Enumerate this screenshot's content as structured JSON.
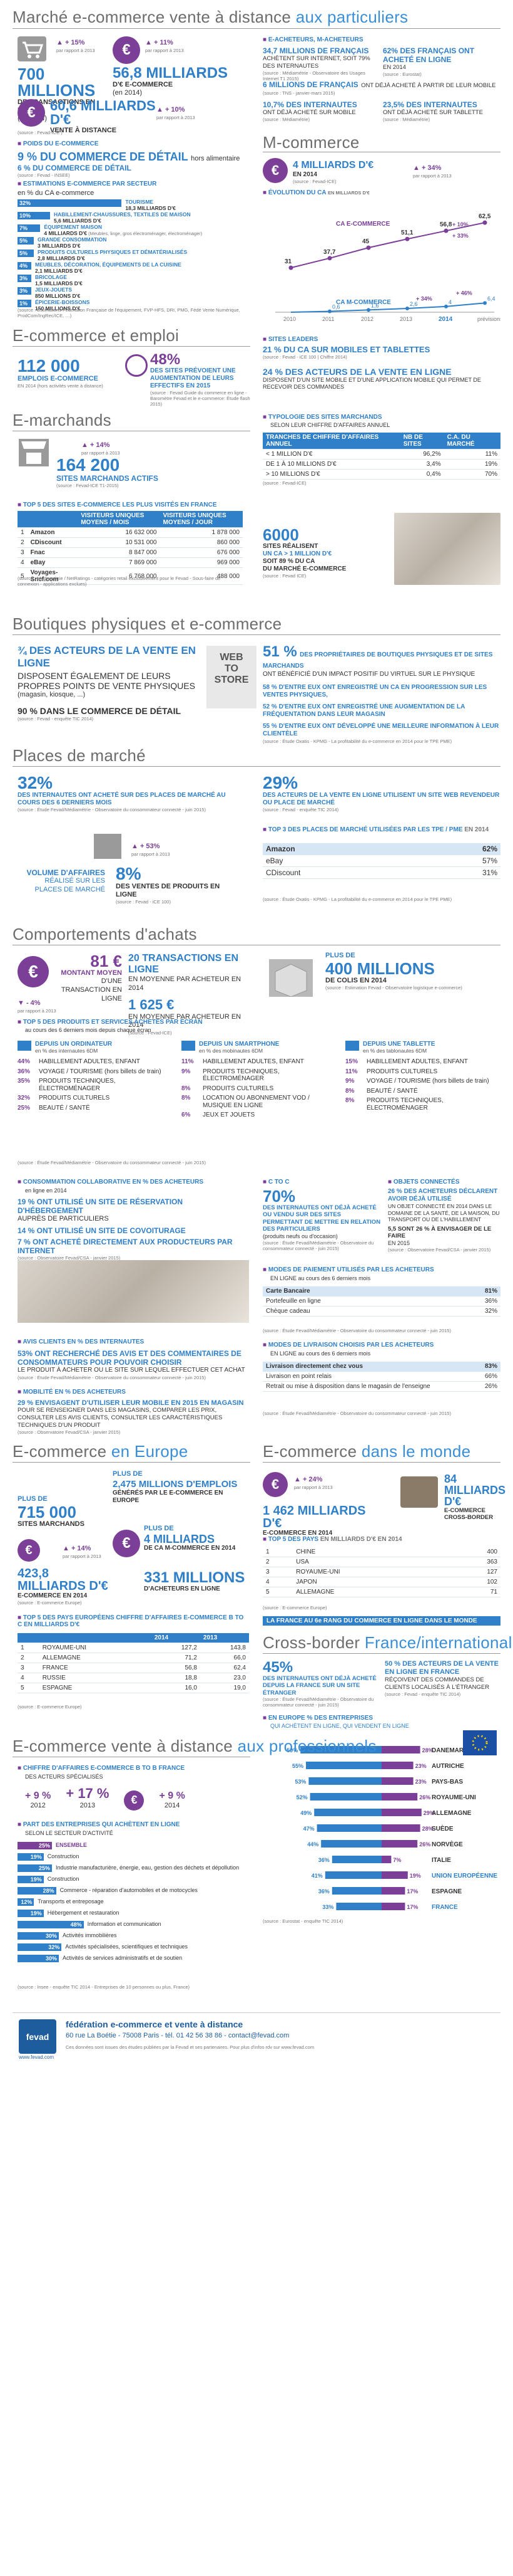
{
  "s1": {
    "title": "Marché e-commerce vente à distance ",
    "title_hl": "aux particuliers",
    "stat1_pct": "+ 15%",
    "stat1_sub": "par rapport à 2013",
    "stat1_val": "700 MILLIONS",
    "stat1_lbl": "DE TRANSACTIONS EN LIGNE",
    "stat1_year": "(en 2014)",
    "stat2_pct": "+ 11%",
    "stat2_sub": "par rapport à 2013",
    "stat2_val": "56,8 MILLIARDS",
    "stat2_lbl": "D'€ E-COMMERCE",
    "stat2_year": "(en 2014)",
    "stat3_val": "60,6 MILLIARDS D'€",
    "stat3_lbl": "VENTE À DISTANCE",
    "stat3_pct": "+ 10%",
    "stat3_sub": "par rapport à 2013",
    "src1": "(source : Fevad-ICE )",
    "poids_tag": "POIDS DU E-COMMERCE",
    "poids_val": "9 % DU COMMERCE DE DÉTAIL",
    "poids_sub1": "hors alimentaire",
    "poids_val2": "6 % DU COMMERCE DE DÉTAIL",
    "src2": "(source : Fevad - INSEE)",
    "estim_tag": "ESTIMATIONS E-COMMERCE PAR SECTEUR",
    "estim_sub": "en % du CA e-commerce",
    "sectors": [
      {
        "pct": "32%",
        "name": "TOURISME",
        "val": "18,3 MILLIARDS D'€"
      },
      {
        "pct": "10%",
        "name": "HABILLEMENT-CHAUSSURES, TEXTILES DE MAISON",
        "val": "5,6 MILLIARDS D'€"
      },
      {
        "pct": "7%",
        "name": "ÉQUIPEMENT MAISON",
        "val": "4 MILLIARDS D'€",
        "note": "(Meubles, linge, gros électroménager, électroménager)"
      },
      {
        "pct": "5%",
        "name": "GRANDE CONSOMMATION",
        "val": "3 MILLIARDS D'€"
      },
      {
        "pct": "5%",
        "name": "PRODUITS CULTURELS PHYSIQUES ET DÉMATÉRIALISÉS",
        "val": "2,8 MILLIARDS D'€"
      },
      {
        "pct": "4%",
        "name": "MEUBLES, DÉCORATION, ÉQUIPEMENTS DE LA CUISINE",
        "val": "2,1 MILLIARDS D'€"
      },
      {
        "pct": "3%",
        "name": "BRICOLAGE",
        "val": "1,5 MILLIARDS D'€"
      },
      {
        "pct": "3%",
        "name": "JEUX-JOUETS",
        "val": "850 MILLIONS D'€"
      },
      {
        "pct": "1%",
        "name": "ÉPICERIE-BOISSONS",
        "val": "150 MILLIONS D'€"
      }
    ],
    "sector_pcts": [
      32,
      10,
      7,
      5,
      5,
      4,
      3,
      3,
      1
    ],
    "src3": "(source : Estimations Fédération Française de l'équipement, FVP-HFS, DRI, PMG, Fédé Vente Numérique, ProdCom/IngRec/ICE, …)",
    "acheteurs_tag": "E-ACHETEURS, M-ACHETEURS",
    "ach1_val": "34,7 MILLIONS DE FRANÇAIS",
    "ach1_lbl": "ACHÈTENT SUR INTERNET, SOIT 79% DES INTERNAUTES",
    "ach1_src": "(source : Médiamétrie - Observatoire des Usages Internet T1 2015)",
    "ach2_val": "62% DES FRANÇAIS ONT ACHETÉ EN LIGNE",
    "ach2_lbl": "EN 2014",
    "ach2_src": "(source : Eurostat)",
    "ach3_val": "6 MILLIONS DE FRANÇAIS",
    "ach3_lbl": "ONT DÉJÀ ACHETÉ À PARTIR DE LEUR MOBILE",
    "ach3_src": "(source : TNS - janvier-mars 2015)",
    "ach4_val": "10,7% DES INTERNAUTES",
    "ach4_lbl": "ONT DÉJÀ ACHETÉ SUR MOBILE",
    "ach4_src": "(source : Médiamétrie)",
    "ach5_val": "23,5% DES INTERNAUTES",
    "ach5_lbl": "ONT DÉJÀ ACHETÉ SUR TABLETTE",
    "ach5_src": "(source : Médiamétrie)"
  },
  "mcom": {
    "title": "M-commerce",
    "val": "4 MILLIARDS D'€",
    "lbl": "EN 2014",
    "pct": "+ 34%",
    "sub": "par rapport à 2013",
    "src": "(source : Fevad-ICE)",
    "evol_tag": "ÉVOLUTION DU CA",
    "evol_sub": "en milliards d'€",
    "chart_title": "CA E-COMMERCE",
    "chart_title2": "CA M-COMMERCE",
    "years": [
      "2010",
      "2011",
      "2012",
      "2013",
      "2014",
      "prévisions 2015"
    ],
    "ecom": [
      31,
      37.7,
      45,
      51.1,
      56.8,
      62.5
    ],
    "mcom": [
      0,
      0.6,
      1.6,
      2.6,
      4,
      6.4
    ],
    "ecom_lbl": [
      "31",
      "37,7",
      "45",
      "51,1",
      "56,8",
      "62,5"
    ],
    "mcom_lbl": [
      "",
      "0,6",
      "1,6",
      "2,6",
      "4",
      "6,4"
    ],
    "ann1": "+ 10%",
    "ann2": "+ 33%",
    "ann3": "+ 34%",
    "ann4": "+ 46%",
    "leaders_tag": "SITES LEADERS",
    "leaders_val": "21 % DU CA SUR MOBILES ET TABLETTES",
    "leaders_src": "(source : Fevad - iCE 100 | Chiffre 2014)",
    "acteurs_val": "24 % DES ACTEURS DE LA VENTE EN LIGNE",
    "acteurs_lbl": "DISPOSENT D'UN SITE MOBILE ET D'UNE APPLICATION MOBILE QUI PERMET DE RECEVOIR DES COMMANDES"
  },
  "emploi": {
    "title": "E-commerce et emploi",
    "val": "112 000",
    "lbl": "EMPLOIS E-COMMERCE",
    "sub": "EN 2014 (hors activités vente à distance)",
    "pct": "48%",
    "pct_lbl": "DES SITES PRÉVOIENT UNE AUGMENTATION DE LEURS EFFECTIFS EN 2015",
    "src": "(source : Fevad Guide du commerce en ligne - Baromètre Fevad et le e-commerce: Étude flash 2015)"
  },
  "emarch": {
    "title": "E-marchands",
    "pct": "+ 14%",
    "sub": "par rapport à 2013",
    "val": "164 200",
    "lbl": "SITES MARCHANDS ACTIFS",
    "src": "(source : Fevad-ICE T1-2015)",
    "typo_tag": "TYPOLOGIE DES SITES MARCHANDS",
    "typo_sub": "SELON LEUR CHIFFRE D'AFFAIRES ANNUEL",
    "typo_head": [
      "TRANCHES DE CHIFFRE D'AFFAIRES ANNUEL",
      "NB DE SITES",
      "C.A. DU MARCHÉ"
    ],
    "typo_rows": [
      [
        "< 1 MILLION D'€",
        "96,2%",
        "11%"
      ],
      [
        "DE 1 À 10 MILLIONS D'€",
        "3,4%",
        "19%"
      ],
      [
        "> 10 MILLIONS D'€",
        "0,4%",
        "70%"
      ]
    ],
    "typo_src": "(source : Fevad-ICE)",
    "top5_tag": "TOP 5 DES SITES E-COMMERCE LES PLUS VISITÉS EN FRANCE",
    "top5_head": [
      "",
      "VISITEURS UNIQUES MOYENS / MOIS",
      "VISITEURS UNIQUES MOYENS / JOUR"
    ],
    "top5": [
      [
        "1",
        "Amazon",
        "16 632 000",
        "1 878 000"
      ],
      [
        "2",
        "CDiscount",
        "10 531 000",
        "860 000"
      ],
      [
        "3",
        "Fnac",
        "8 847 000",
        "676 000"
      ],
      [
        "4",
        "eBay",
        "7 869 000",
        "969 000"
      ],
      [
        "5",
        "Voyages-Sncf.com",
        "6 768 000",
        "488 000"
      ]
    ],
    "top5_src": "(source : Médiamétrie / NetRatings - catégories retail exclusivement pour le Fevad - Sous-faire de connexion - applications exclues)",
    "sites_val": "6000",
    "sites_lbl1": "SITES RÉALISENT",
    "sites_lbl2": "UN CA > 1 MILLION D'€",
    "sites_lbl3": "SOIT 89 % DU CA",
    "sites_lbl4": "DU MARCHÉ E-COMMERCE",
    "sites_src": "(source : Fevad ICE)"
  },
  "bphy": {
    "title": "Boutiques physiques et e-commerce",
    "v1": "¾ DES ACTEURS DE LA VENTE EN LIGNE",
    "v1b": "DISPOSENT ÉGALEMENT DE LEURS PROPRES POINTS DE VENTE PHYSIQUES",
    "v1c": "(magasin, kiosque, ...)",
    "v2": "90 % DANS LE COMMERCE DE DÉTAIL",
    "v2_src": "(source : Fevad - enquête TIC 2014)",
    "web": "WEB",
    "to": "TO",
    "store": "STORE",
    "p51": "51 %",
    "p51_lbl": "DES PROPRIÉTAIRES DE BOUTIQUES PHYSIQUES ET DE SITES MARCHANDS",
    "p51_b": "ONT BÉNÉFICIÉ D'UN IMPACT POSITIF DU VIRTUEL SUR LE PHYSIQUE",
    "p58": "58 % D'ENTRE EUX ONT ENREGISTRÉ UN CA EN PROGRESSION SUR LES VENTES PHYSIQUES,",
    "p52": "52 % D'ENTRE EUX ONT ENREGISTRÉ UNE AUGMENTATION DE LA FRÉQUENTATION DANS LEUR MAGASIN",
    "p55": "55 % D'ENTRE EUX ONT DÉVELOPPÉ UNE MEILLEURE INFORMATION À LEUR CLIENTÈLE",
    "src": "(source : Étude Oxatis - KPMG - La profitabilité du e-commerce en 2014 pour le TPE PME)"
  },
  "place": {
    "title": "Places de marché",
    "p32": "32%",
    "p32_lbl": "DES INTERNAUTES ONT ACHETÉ SUR DES PLACES DE MARCHÉ AU COURS DES 6 DERNIERS MOIS",
    "p32_src": "(source : Étude Fevad/Médiamétrie - Observatoire du consommateur connecté - juin 2015)",
    "p29": "29%",
    "p29_lbl": "DES ACTEURS DE LA VENTE EN LIGNE UTILISENT UN SITE WEB REVENDEUR OU PLACE DE MARCHÉ",
    "p29_src": "(source : Fevad - enquête TIC 2014)",
    "pct": "+ 53%",
    "sub": "par rapport à 2013",
    "vol1": "VOLUME D'AFFAIRES",
    "vol2": "RÉALISÉ SUR LES PLACES DE MARCHÉ",
    "p8": "8%",
    "p8_lbl": "DES VENTES DE PRODUITS EN LIGNE",
    "p8_src": "(source : Fevad - iCE 100)",
    "top3_tag": "TOP 3 DES PLACES DE MARCHÉ UTILISÉES PAR LES TPE / PME",
    "top3_sub": "EN 2014",
    "top3": [
      [
        "Amazon",
        "62%"
      ],
      [
        "eBay",
        "57%"
      ],
      [
        "CDiscount",
        "31%"
      ]
    ],
    "top3_src": "(source : Étude Oxatis - KPMG - La profitabilité du e-commerce en 2014 pour le TPE PME)"
  },
  "achats": {
    "title": "Comportements d'achats",
    "m81": "81 €",
    "m81_lbl": "MONTANT MOYEN",
    "m81_sub": "D'UNE TRANSACTION EN LIGNE",
    "m81_pct": "- 4%",
    "m81_psub": "par rapport à 2013",
    "t20": "20 TRANSACTIONS EN LIGNE",
    "t20_lbl": "EN MOYENNE PAR ACHETEUR EN 2014",
    "t1625": "1 625 €",
    "t1625_lbl": "EN MOYENNE PAR ACHETEUR EN 2014",
    "plus": "PLUS DE",
    "colis": "400 MILLIONS",
    "colis_lbl": "DE COLIS EN 2014",
    "colis_src": "(source : Estimation Fevad - Observatoire logistique e-commerce)",
    "src": "(source : Fevad-ICE)",
    "top5_tag": "TOP 5 DES PRODUITS ET SERVICES ACHETÉS PAR ÉCRAN",
    "top5_sub": "au cours des 6 derniers mois depuis chaque écran",
    "cols": [
      {
        "h": "DEPUIS UN ORDINATEUR",
        "s": "en % des internautes 6DM",
        "items": [
          [
            "44%",
            "HABILLEMENT ADULTES, ENFANT"
          ],
          [
            "36%",
            "VOYAGE / TOURISME (hors billets de train)"
          ],
          [
            "35%",
            "PRODUITS TECHNIQUES, ÉLECTROMÉNAGER"
          ],
          [
            "32%",
            "PRODUITS CULTURELS"
          ],
          [
            "25%",
            "BEAUTÉ / SANTÉ"
          ]
        ]
      },
      {
        "h": "DEPUIS UN SMARTPHONE",
        "s": "en % des mobinautes 6DM",
        "items": [
          [
            "11%",
            "HABILLEMENT ADULTES, ENFANT"
          ],
          [
            "9%",
            "PRODUITS TECHNIQUES, ÉLECTROMÉNAGER"
          ],
          [
            "8%",
            "PRODUITS CULTURELS"
          ],
          [
            "8%",
            "LOCATION OU ABONNEMENT VOD / MUSIQUE EN LIGNE"
          ],
          [
            "6%",
            "JEUX ET JOUETS"
          ]
        ]
      },
      {
        "h": "DEPUIS UNE TABLETTE",
        "s": "en % des tablonautes 6DM",
        "items": [
          [
            "15%",
            "HABILLEMENT ADULTES, ENFANT"
          ],
          [
            "11%",
            "PRODUITS CULTURELS"
          ],
          [
            "9%",
            "VOYAGE / TOURISME (hors billets de train)"
          ],
          [
            "8%",
            "BEAUTÉ / SANTÉ"
          ],
          [
            "8%",
            "PRODUITS TECHNIQUES, ÉLECTROMÉNAGER"
          ]
        ]
      }
    ],
    "top5_src": "(source : Étude Fevad/Médiamétrie - Observatoire du consommateur connecté - juin 2015)",
    "collab_tag": "CONSOMMATION COLLABORATIVE en % des acheteurs",
    "collab_sub": "en ligne en 2014",
    "c19": "19 % ONT UTILISÉ UN SITE DE RÉSERVATION D'HÉBERGEMENT",
    "c19b": "AUPRÈS DE PARTICULIERS",
    "c14": "14 % ONT UTILISÉ UN SITE DE COVOITURAGE",
    "c7": "7 % ONT ACHETÉ DIRECTEMENT AUX PRODUCTEURS PAR INTERNET",
    "collab_src": "(source : Observatoire Fevad/CSA - janvier 2015)",
    "c2c_tag": "C to C",
    "c70": "70%",
    "c70_lbl": "DES INTERNAUTES ONT DÉJÀ ACHETÉ OU VENDU SUR DES SITES PERMETTANT DE METTRE EN RELATION DES PARTICULIERS",
    "c70_b": "(produits neufs ou d'occasion)",
    "c2c_src": "(source : Étude Fevad/Médiamétrie - Observatoire du consommateur connecté - juin 2015)",
    "obj_tag": "OBJETS CONNECTÉS",
    "o26": "26 % DES ACHETEURS DÉCLARENT AVOIR DÉJÀ UTILISÉ",
    "o26b": "UN OBJET CONNECTÉ EN 2014 DANS LE DOMAINE DE LA SANTÉ, DE LA MAISON, DU TRANSPORT OU DE L'HABILLEMENT",
    "o5": "5,5 SONT 26 % À ENVISAGER DE LE FAIRE",
    "o5b": "EN 2015",
    "obj_src": "(source : Observatoire Fevad/CSA - janvier 2015)",
    "pay_tag": "MODES DE PAIEMENT UTILISÉS PAR LES ACHETEURS",
    "pay_sub": "EN LIGNE au cours des 6 derniers mois",
    "pay": [
      [
        "Carte Bancaire",
        "81%"
      ],
      [
        "Portefeuille en ligne",
        "36%"
      ],
      [
        "Chèque cadeau",
        "32%"
      ]
    ],
    "pay_src": "(source : Étude Fevad/Médiamétrie - Observatoire du consommateur connecté - juin 2015)",
    "avis_tag": "AVIS CLIENTS en % des internautes",
    "a53": "53% ONT RECHERCHÉ DES AVIS ET DES COMMENTAIRES DE CONSOMMATEURS POUR POUVOIR CHOISIR",
    "a53b": "LE PRODUIT À ACHETER OU LE SITE SUR LEQUEL EFFECTUER CET ACHAT",
    "avis_src": "(source : Étude Fevad/Médiamétrie - Observatoire du consommateur connecté - juin 2015)",
    "mob_tag": "MOBILITÉ en % des acheteurs",
    "m29": "29 % ENVISAGENT D'UTILISER LEUR MOBILE EN 2015 EN MAGASIN",
    "m29b": "POUR SE RENSEIGNER DANS LES MAGASINS, COMPARER LES PRIX, CONSULTER LES AVIS CLIENTS, CONSULTER LES CARACTÉRISTIQUES TECHNIQUES D'UN PRODUIT",
    "mob_src": "(source : Observatoire Fevad/CSA - janvier 2015)",
    "livr_tag": "MODES DE LIVRAISON CHOISIS PAR LES ACHETEURS",
    "livr_sub": "EN LIGNE au cours des 6 derniers mois",
    "livr": [
      [
        "Livraison directement chez vous",
        "83%"
      ],
      [
        "Livraison en point relais",
        "66%"
      ],
      [
        "Retrait ou mise à disposition dans le magasin de l'enseigne",
        "26%"
      ]
    ],
    "livr_src": "(source : Étude Fevad/Médiamétrie - Observatoire du consommateur connecté - juin 2015)"
  },
  "europe": {
    "title": "E-commerce ",
    "title_hl": "en Europe",
    "plus1": "PLUS DE",
    "emp_val": "2,475 MILLIONS D'EMPLOIS",
    "emp_lbl": "GÉNÉRÉS PAR LE E-COMMERCE EN EUROPE",
    "plus2": "PLUS DE",
    "sites": "715 000",
    "sites_lbl": "SITES MARCHANDS",
    "plus3": "PLUS DE",
    "mcom": "4 MILLIARDS",
    "mcom_lbl": "DE CA M-COMMERCE EN 2014",
    "pct": "+ 14%",
    "psub": "par rapport à 2013",
    "ca": "423,8 MILLIARDS D'€",
    "ca_lbl": "E-COMMERCE EN 2014",
    "ach": "331 MILLIONS",
    "ach_lbl": "D'ACHETEURS EN LIGNE",
    "src": "(source : E-commerce Europe)",
    "top5_tag": "TOP 5 DES PAYS EUROPÉENS CHIFFRE D'AFFAIRES",
    "top5_sub": "E-COMMERCE B to C EN MILLIARDS D'€",
    "top5_head": [
      "",
      "",
      "2014",
      "2013"
    ],
    "top5": [
      [
        "1",
        "ROYAUME-UNI",
        "127,2",
        "143,8"
      ],
      [
        "2",
        "ALLEMAGNE",
        "71,2",
        "66,0"
      ],
      [
        "3",
        "FRANCE",
        "56,8",
        "62,4"
      ],
      [
        "4",
        "RUSSIE",
        "18,8",
        "23,0"
      ],
      [
        "5",
        "ESPAGNE",
        "16,0",
        "19,0"
      ]
    ],
    "top5_src": "(source : E-commerce Europe)"
  },
  "monde": {
    "title": "E-commerce ",
    "title_hl": "dans le monde",
    "pct": "+ 24%",
    "psub": "par rapport à 2013",
    "val": "1 462 MILLIARDS D'€",
    "lbl": "E-COMMERCE EN 2014",
    "v84": "84 MILLIARDS D'€",
    "v84_lbl": "E-COMMERCE CROSS-BORDER",
    "top5_tag": "TOP 5 DES PAYS",
    "top5_sub": "EN MILLIARDS D'€ EN 2014",
    "top5": [
      [
        "1",
        "CHINE",
        "400"
      ],
      [
        "2",
        "USA",
        "363"
      ],
      [
        "3",
        "ROYAUME-UNI",
        "127"
      ],
      [
        "4",
        "JAPON",
        "102"
      ],
      [
        "5",
        "ALLEMAGNE",
        "71"
      ]
    ],
    "top5_src": "(source : E-commerce Europe)",
    "rank": "LA FRANCE AU 6e RANG DU COMMERCE EN LIGNE DANS LE MONDE"
  },
  "cross": {
    "title": "Cross-border ",
    "title_hl": "France/international",
    "p45": "45%",
    "p45_lbl": "DES INTERNAUTES ONT DÉJÀ ACHETÉ DEPUIS LA FRANCE SUR UN SITE ÉTRANGER",
    "p45_src": "(source : Étude Fevad/Médiamétrie - Observatoire du consommateur connecté - juin 2015)",
    "p50": "50 % DES ACTEURS DE LA VENTE EN LIGNE EN FRANCE",
    "p50b": "RÉÇOIVENT DES COMMANDES DE CLIENTS LOCALISÉS À L'ÉTRANGER",
    "p50_src": "(source : Fevad - enquête TIC 2014)",
    "eu_tag": "EN EUROPE % DES ENTREPRISES",
    "eu_sub": "QUI ACHÈTENT EN LIGNE, QUI VENDENT EN LIGNE",
    "eu_countries": [
      "DANEMARK",
      "AUTRICHE",
      "PAYS-BAS",
      "ROYAUME-UNI",
      "ALLEMAGNE",
      "SUÈDE",
      "NORVÈGE",
      "ITALIE",
      "UNION EUROPÉENNE",
      "ESPAGNE",
      "FRANCE"
    ],
    "eu_buy": [
      59,
      55,
      53,
      52,
      49,
      47,
      44,
      36,
      41,
      36,
      33
    ],
    "eu_sell": [
      28,
      23,
      23,
      26,
      29,
      28,
      26,
      7,
      19,
      17,
      17
    ],
    "eu_src": "(source : Eurostat - enquête TIC 2014)"
  },
  "pro": {
    "title": "E-commerce vente à distance ",
    "title_hl": "aux professionnels",
    "ca_tag": "CHIFFRE D'AFFAIRES E-COMMERCE B to B FRANCE",
    "ca_sub": "DES ACTEURS SPÉCIALISÉS",
    "p1": "+ 9 %",
    "p1_lbl": "2012",
    "p2": "+ 17 %",
    "p2_lbl": "2013",
    "p3": "+ 9 %",
    "p3_lbl": "2014",
    "ach_tag": "PART DES ENTREPRISES QUI ACHÈTENT EN LIGNE",
    "ach_sub": "SELON LE SECTEUR D'ACTIVITÉ",
    "bars": [
      [
        "25%",
        "ENSEMBLE"
      ],
      [
        "19%",
        "Construction"
      ],
      [
        "25%",
        "Industrie manufacturière, énergie, eau, gestion des déchets et dépollution"
      ],
      [
        "19%",
        "Construction"
      ],
      [
        "28%",
        "Commerce - réparation d'automobiles et de motocycles"
      ],
      [
        "12%",
        "Transports et entreposage"
      ],
      [
        "19%",
        "Hébergement et restauration"
      ],
      [
        "48%",
        "Information et communication"
      ],
      [
        "30%",
        "Activités immobilières"
      ],
      [
        "32%",
        "Activités spécialisées, scientifiques et techniques"
      ],
      [
        "30%",
        "Activités de services administratifs et de soutien"
      ]
    ],
    "bar_vals": [
      25,
      19,
      25,
      19,
      28,
      12,
      19,
      48,
      30,
      32,
      30
    ],
    "src": "(source : Insee - enquête TIC 2014 - Entreprises de 10 personnes ou plus, France)"
  },
  "footer": {
    "org": "fédération e-commerce et vente à distance",
    "addr": "60 rue La Boétie - 75008 Paris - tél. 01 42 56 38 86 - contact@fevad.com",
    "logo": "fevad",
    "url": "www.fevad.com",
    "note": "Ces données sont issues des études publiées par la Fevad et ses partenaires. Pour plus d'infos rdv sur www.fevad.com"
  }
}
